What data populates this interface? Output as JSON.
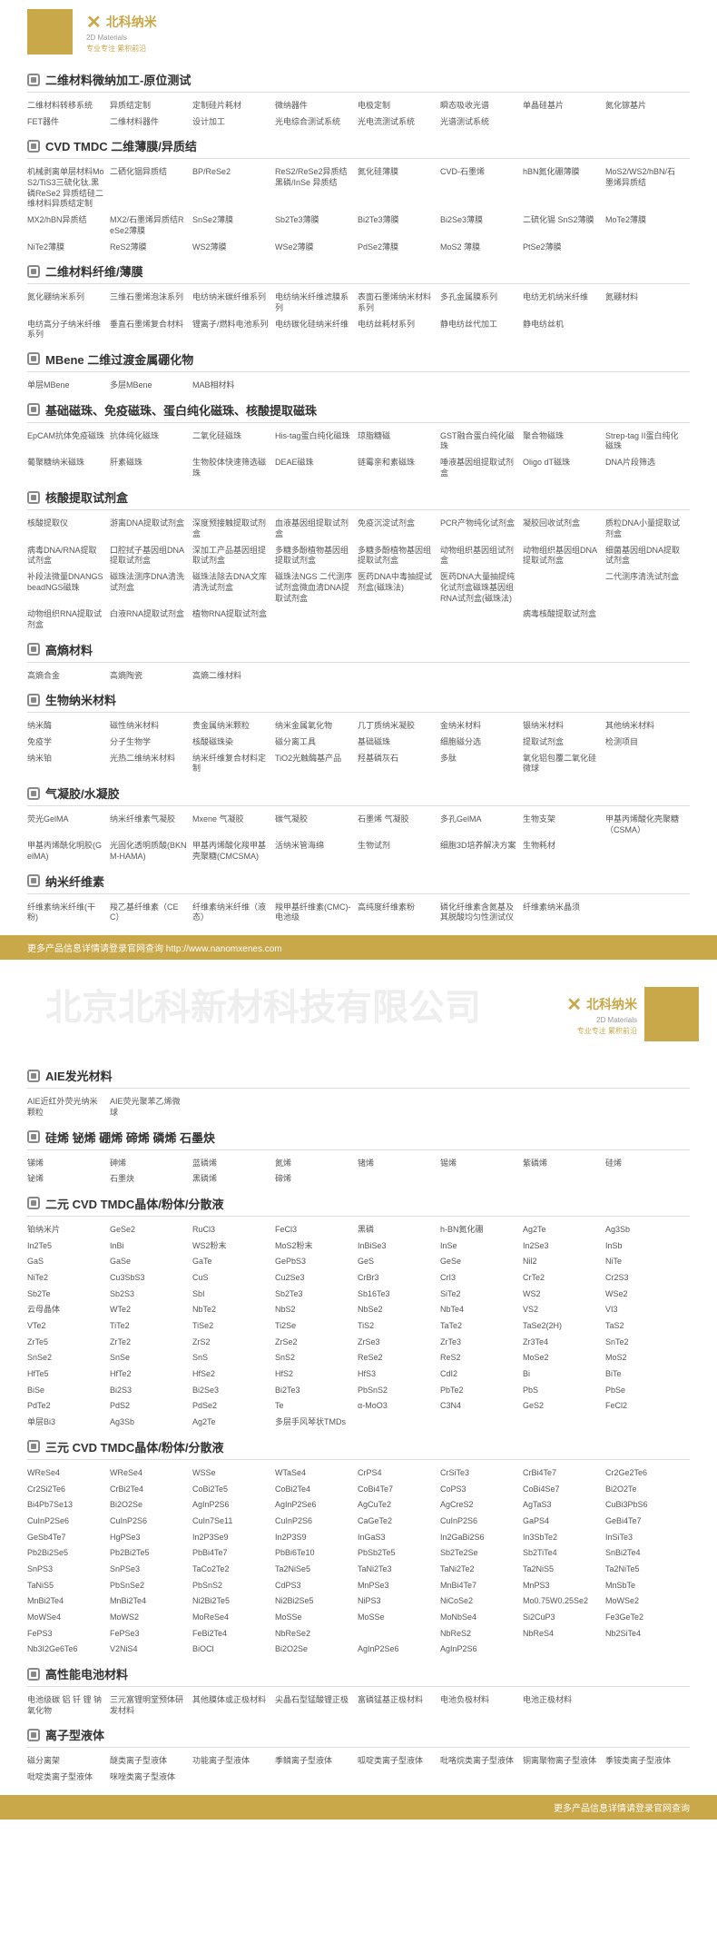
{
  "logo": {
    "brand": "北科纳米",
    "sub": "2D Materials",
    "slogan": "专业专注 累积前沿"
  },
  "footerLeft": "更多产品信息详情请登录官网查询",
  "footerUrl": "http://www.nanomxenes.com",
  "watermark": "北京北科新材科技有限公司",
  "sections": [
    {
      "title": "二维材料微纳加工-原位测试",
      "items": [
        "二维材料转移系统",
        "异质结定制",
        "定制硅片耗材",
        "微纳器件",
        "电极定制",
        "瞬态吸收光谱",
        "单晶硅基片",
        "氮化镓基片",
        "FET器件",
        "二维材料器件",
        "设计加工",
        "光电综合测试系统",
        "光电流测试系统",
        "光谱测试系统"
      ]
    },
    {
      "title": "CVD TMDC 二维薄膜/异质结",
      "items": [
        "机械剥离单层材料MoS2/TiS3三硫化钛.黑磷ReSe2 异质结硅二维材料异质结定制",
        "二硒化铟异质结",
        "BP/ReSe2",
        "ReS2/ReSe2异质结黑磷/InSe 异质结",
        "氮化硅薄膜",
        "CVD-石墨烯",
        "hBN氮化硼薄膜",
        "MoS2/WS2/hBN/石墨烯异质结",
        "MX2/hBN异质结",
        "MX2/石墨烯异质结ReSe2薄膜",
        "SnSe2薄膜",
        "Sb2Te3薄膜",
        "Bi2Te3薄膜",
        "Bi2Se3薄膜",
        "二硫化锡 SnS2薄膜",
        "MoTe2薄膜",
        "NiTe2薄膜",
        "ReS2薄膜",
        "WS2薄膜",
        "WSe2薄膜",
        "PdSe2薄膜",
        "MoS2 薄膜",
        "PtSe2薄膜"
      ]
    },
    {
      "title": "二维材料纤维/薄膜",
      "items": [
        "氮化硼纳米系列",
        "三维石墨烯泡沫系列",
        "电纺纳米碳纤维系列",
        "电纺纳米纤维滤膜系列",
        "表面石墨烯纳米材料系列",
        "多孔金属膜系列",
        "电纺无机纳米纤维",
        "氮硼材料",
        "电纺高分子纳米纤维系列",
        "垂直石墨烯复合材料",
        "锂离子/燃料电池系列",
        "电纺碳化硅纳米纤维",
        "电纺丝耗材系列",
        "静电纺丝代加工",
        "静电纺丝机"
      ]
    },
    {
      "title": "MBene 二维过渡金属硼化物",
      "items": [
        "单层MBene",
        "多层MBene",
        "MAB相材料"
      ]
    },
    {
      "title": "基础磁珠、免疫磁珠、蛋白纯化磁珠、核酸提取磁珠",
      "items": [
        "EpCAM抗体免疫磁珠",
        "抗体纯化磁珠",
        "二氧化硅磁珠",
        "His-tag蛋白纯化磁珠",
        "琼脂糖磁",
        "GST融合蛋白纯化磁珠",
        "聚合物磁珠",
        "Strep-tag II蛋白纯化磁珠",
        "葡聚糖纳米磁珠",
        "肝素磁珠",
        "生物胶体快速筛选磁珠",
        "DEAE磁珠",
        "链霉亲和素磁珠",
        "唾液基因组提取试剂盒",
        "Oligo dT磁珠",
        "DNA片段筛选"
      ]
    },
    {
      "title": "核酸提取试剂盒",
      "items": [
        "核酸提取仪",
        "游离DNA提取试剂盒",
        "深度预接触提取试剂盒",
        "血液基因组提取试剂盒",
        "免疫沉淀试剂盒",
        "PCR产物纯化试剂盒",
        "凝胶回收试剂盒",
        "质粒DNA小量提取试剂盒",
        "病毒DNA/RNA提取试剂盒",
        "口腔拭子基因组DNA提取试剂盒",
        "深加工产品基因组提取试剂盒",
        "多糖多酚植物基因组提取试剂盒",
        "多糖多酚植物基因组提取试剂盒",
        "动物组织基因组试剂盒",
        "动物组织基因组DNA提取试剂盒",
        "细菌基因组DNA提取试剂盒",
        "补段法微量DNANGSbeadNGS磁珠",
        "磁珠法测序DNA清洗试剂盒",
        "磁珠法除去DNA文库清洗试剂盒",
        "磁珠法NGS 二代测序试剂盒微血清DNA提取试剂盒",
        "医药DNA中毒抽提试剂盒(磁珠法)",
        "医药DNA大量抽提纯化试剂盒磁珠基因组RNA试剂盒(磁珠法)",
        "",
        "二代测序清洗试剂盒",
        "动物组织RNA提取试剂盒",
        "白液RNA提取试剂盒",
        "植物RNA提取试剂盒",
        "",
        "",
        "",
        "病毒核酸提取试剂盒"
      ]
    },
    {
      "title": "高熵材料",
      "items": [
        "高熵合金",
        "高熵陶瓷",
        "高熵二维材料"
      ]
    },
    {
      "title": "生物纳米材料",
      "items": [
        "纳米酶",
        "磁性纳米材料",
        "贵金属纳米颗粒",
        "纳米金属氧化物",
        "几丁质纳米凝胶",
        "金纳米材料",
        "银纳米材料",
        "其他纳米材料",
        "免疫学",
        "分子生物学",
        "核酸磁珠染",
        "磁分离工具",
        "基础磁珠",
        "细胞磁分选",
        "提取试剂盒",
        "检测项目",
        "纳米铂",
        "光热二维纳米材料",
        "纳米纤维复合材料定制",
        "TiO2光触酶基产品",
        "羟基磷灰石",
        "多肽",
        "氧化铝包覆二氧化硅微球"
      ]
    },
    {
      "title": "气凝胶/水凝胶",
      "items": [
        "荧光GelMA",
        "纳米纤维素气凝胶",
        "Mxene 气凝胶",
        "碳气凝胶",
        "石墨烯 气凝胶",
        "多孔GelMA",
        "生物支架",
        "甲基丙烯酸化壳聚糖（CSMA）",
        "甲基丙烯酰化明胶(GelMA)",
        "光固化透明质酸(BKNM-HAMA)",
        "甲基丙烯酸化羧甲基壳聚糖(CMCSMA)",
        "活纳米管海绵",
        "生物试剂",
        "细胞3D培养解决方案",
        "生物耗材"
      ]
    },
    {
      "title": "纳米纤维素",
      "items": [
        "纤维素纳米纤维(干粉)",
        "羧乙基纤维素（CEC）",
        "纤维素纳米纤维（液态）",
        "羧甲基纤维素(CMC)-电池级",
        "高纯度纤维素粉",
        "磷化纤维素含氮基及其脱酸均匀性测试仪",
        "纤维素纳米晶须"
      ]
    }
  ],
  "sections2": [
    {
      "title": "AIE发光材料",
      "items": [
        "AIE近红外荧光纳米颗粒",
        "AIE荧光聚苯乙烯微球"
      ]
    },
    {
      "title": "硅烯 铋烯 硼烯 碲烯 磷烯 石墨炔",
      "items": [
        "锑烯",
        "砷烯",
        "蓝磷烯",
        "氮烯",
        "锗烯",
        "锡烯",
        "紫磷烯",
        "硅烯",
        "铋烯",
        "石墨炔",
        "黑磷烯",
        "碲烯"
      ]
    },
    {
      "title": "二元 CVD TMDC晶体/粉体/分散液",
      "items": [
        "铂纳米片",
        "GeSe2",
        "RuCl3",
        "FeCl3",
        "黑磷",
        "h-BN氮化硼",
        "Ag2Te",
        "Ag3Sb",
        "In2Te5",
        "InBi",
        "WS2粉末",
        "MoS2粉末",
        "InBiSe3",
        "InSe",
        "In2Se3",
        "InSb",
        "GaS",
        "GaSe",
        "GaTe",
        "GePbS3",
        "GeS",
        "GeSe",
        "Nil2",
        "NiTe",
        "NiTe2",
        "Cu3SbS3",
        "CuS",
        "Cu2Se3",
        "CrBr3",
        "CrI3",
        "CrTe2",
        "Cr2S3",
        "Sb2Te",
        "Sb2S3",
        "SbI",
        "Sb2Te3",
        "Sb16Te3",
        "SiTe2",
        "WS2",
        "WSe2",
        "云母晶体",
        "WTe2",
        "NbTe2",
        "NbS2",
        "NbSe2",
        "NbTe4",
        "VS2",
        "VI3",
        "VTe2",
        "TiTe2",
        "TiSe2",
        "Ti2Se",
        "TiS2",
        "TaTe2",
        "TaSe2(2H)",
        "TaS2",
        "ZrTe5",
        "ZrTe2",
        "ZrS2",
        "ZrSe2",
        "ZrSe3",
        "ZrTe3",
        "Zr3Te4",
        "SnTe2",
        "SnSe2",
        "SnSe",
        "SnS",
        "SnS2",
        "ReSe2",
        "ReS2",
        "MoSe2",
        "MoS2",
        "HfTe5",
        "HfTe2",
        "HfSe2",
        "HfS2",
        "HfS3",
        "CdI2",
        "Bi",
        "BiTe",
        "BiSe",
        "Bi2S3",
        "Bi2Se3",
        "Bi2Te3",
        "PbSnS2",
        "PbTe2",
        "PbS",
        "PbSe",
        "PdTe2",
        "PdS2",
        "PdSe2",
        "Te",
        "α-MoO3",
        "C3N4",
        "GeS2",
        "FeCl2",
        "单层Bi3",
        "Ag3Sb",
        "Ag2Te",
        "多层手风琴状TMDs"
      ]
    },
    {
      "title": "三元 CVD TMDC晶体/粉体/分散液",
      "items": [
        "WReSe4",
        "WReSe4",
        "WSSe",
        "WTaSe4",
        "CrPS4",
        "CrSiTe3",
        "CrBi4Te7",
        "Cr2Ge2Te6",
        "Cr2Si2Te6",
        "CrBi2Te4",
        "CoBi2Te5",
        "CoBi2Te4",
        "CoBi4Te7",
        "CoPS3",
        "CoBi4Se7",
        "Bi2O2Te",
        "Bi4Pb7Se13",
        "Bi2O2Se",
        "AgInP2S6",
        "AgInP2Se6",
        "AgCuTe2",
        "AgCreS2",
        "AgTaS3",
        "CuBi3PbS6",
        "CuInP2Se6",
        "CuInP2S6",
        "CuIn7Se11",
        "CuInP2S6",
        "CaGeTe2",
        "CuInP2S6",
        "GaPS4",
        "GeBi4Te7",
        "GeSb4Te7",
        "HgPSe3",
        "In2P3Se9",
        "In2P3S9",
        "InGaS3",
        "In2GaBi2S6",
        "In3SbTe2",
        "InSiTe3",
        "Pb2Bi2Se5",
        "Pb2Bi2Te5",
        "PbBi4Te7",
        "PbBi6Te10",
        "PbSb2Te5",
        "Sb2Te2Se",
        "Sb2TiTe4",
        "SnBi2Te4",
        "SnPS3",
        "SnPSe3",
        "TaCo2Te2",
        "Ta2NiSe5",
        "TaNi2Te3",
        "TaNi2Te2",
        "Ta2NiS5",
        "Ta2NiTe5",
        "TaNiS5",
        "PbSnSe2",
        "PbSnS2",
        "CdPS3",
        "MnPSe3",
        "MnBi4Te7",
        "MnPS3",
        "MnSbTe",
        "MnBi2Te4",
        "MnBi2Te4",
        "Ni2Bi2Te5",
        "Ni2Bi2Se5",
        "NiPS3",
        "NiCoSe2",
        "Mo0.75W0.25Se2",
        "MoWSe2",
        "MoWSe4",
        "MoWS2",
        "MoReSe4",
        "MoSSe",
        "MoSSe",
        "MoNbSe4",
        "Si2CuP3",
        "Fe3GeTe2",
        "FePS3",
        "FePSe3",
        "FeBi2Te4",
        "NbReSe2",
        "",
        "NbReS2",
        "NbReS4",
        "Nb2SiTe4",
        "Nb3I2Ge6Te6",
        "V2NiS4",
        "BiOCl",
        "Bi2O2Se",
        "AgInP2Se6",
        "AgInP2S6"
      ]
    },
    {
      "title": "高性能电池材料",
      "items": [
        "电池级碳 铝 钎 锂 钠 氧化物",
        "三元富锂明堂预体研发材料",
        "其他膜体或正极材料",
        "尖晶石型锰酸锂正极",
        "富磷锰基正极材料",
        "电池负极材料",
        "电池正极材料"
      ]
    },
    {
      "title": "离子型液体",
      "items": [
        "磁分离架",
        "醚类离子型液体",
        "功能离子型液体",
        "季鳞离子型液体",
        "呱啶类离子型液体",
        "吡咯烷类离子型液体",
        "铜离聚物离子型液体",
        "季铵类离子型液体",
        "吡啶类离子型液体",
        "咪唑类离子型液体"
      ]
    }
  ]
}
